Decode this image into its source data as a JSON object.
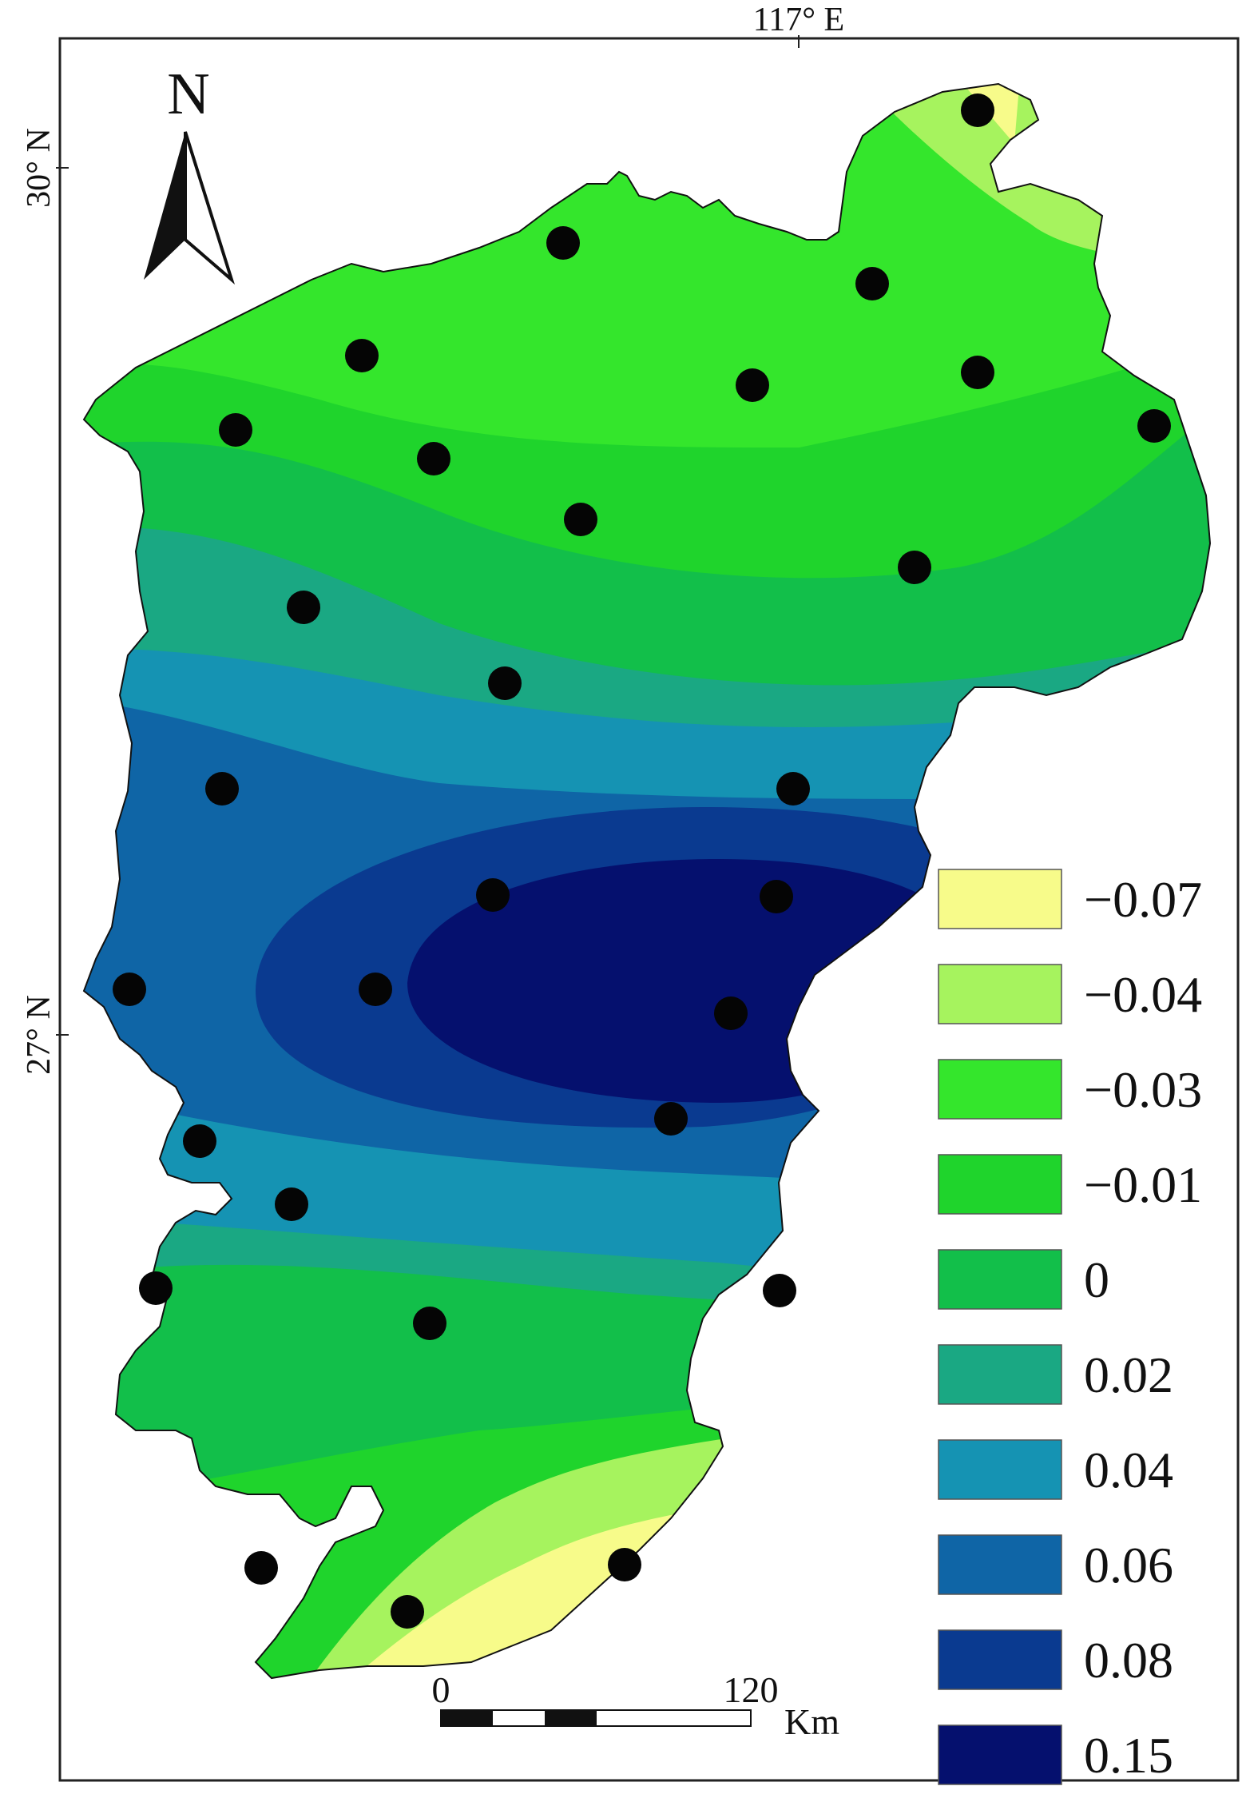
{
  "map": {
    "longitude_label": "117° E",
    "latitude_labels": [
      "30° N",
      "27° N"
    ],
    "north_label": "N"
  },
  "legend": {
    "items": [
      {
        "label": "−0.07",
        "color": "#f7fb8a"
      },
      {
        "label": "−0.04",
        "color": "#a6f35e"
      },
      {
        "label": "−0.03",
        "color": "#34e62c"
      },
      {
        "label": "−0.01",
        "color": "#1fd42c"
      },
      {
        "label": "0",
        "color": "#12bf4a"
      },
      {
        "label": "0.02",
        "color": "#1aa883"
      },
      {
        "label": "0.04",
        "color": "#1593b3"
      },
      {
        "label": "0.06",
        "color": "#0f65a6"
      },
      {
        "label": "0.08",
        "color": "#0a3a90"
      },
      {
        "label": "0.15",
        "color": "#05106e"
      }
    ]
  },
  "scale_bar": {
    "start_label": "0",
    "end_label": "120",
    "unit_label": "Km"
  }
}
